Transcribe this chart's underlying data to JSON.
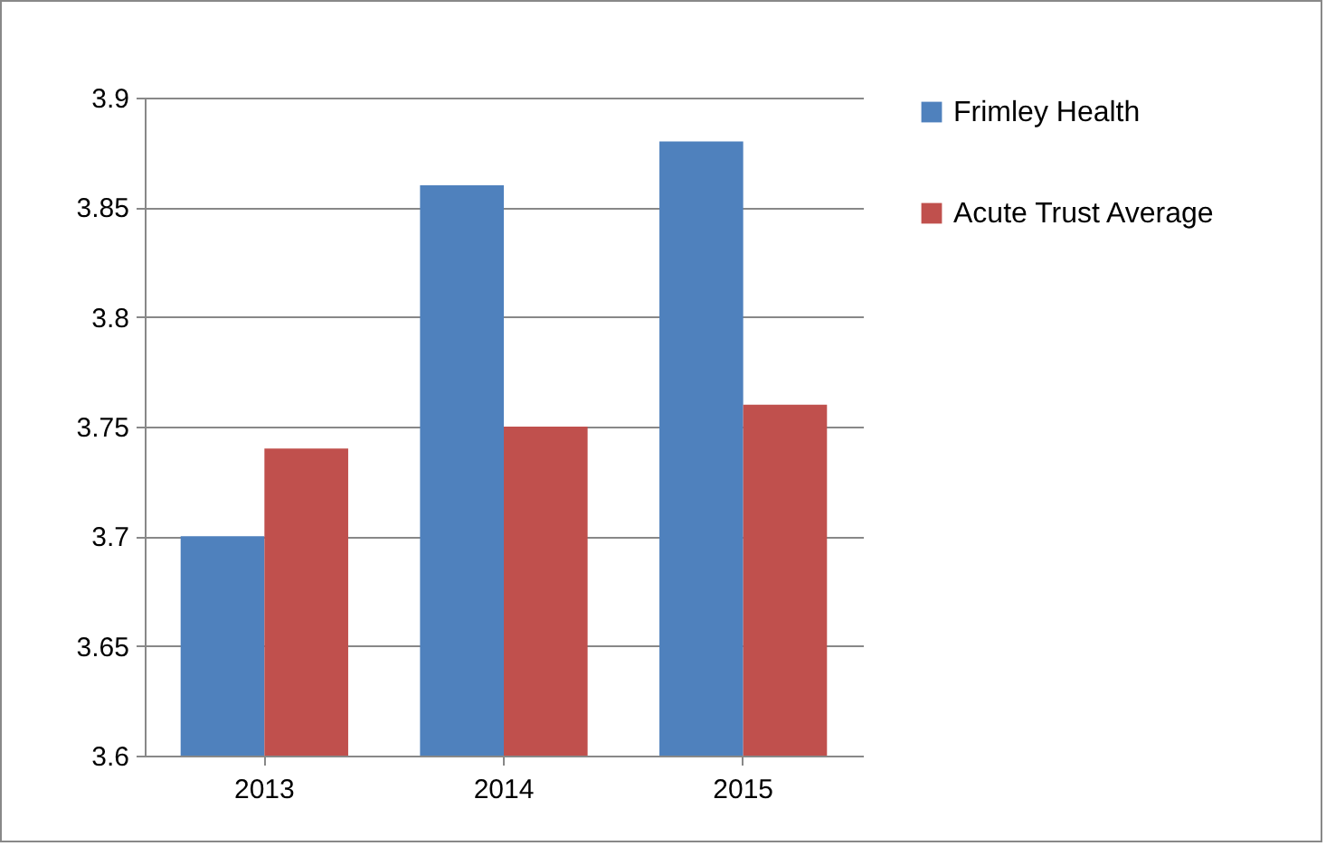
{
  "chart_data": {
    "type": "bar",
    "categories": [
      "2013",
      "2014",
      "2015"
    ],
    "series": [
      {
        "name": "Frimley Health",
        "color": "#4f81bd",
        "values": [
          3.7,
          3.86,
          3.88
        ]
      },
      {
        "name": "Acute Trust Average",
        "color": "#c0504d",
        "values": [
          3.74,
          3.75,
          3.76
        ]
      }
    ],
    "ylim": [
      3.6,
      3.9
    ],
    "yticks": [
      3.6,
      3.65,
      3.7,
      3.75,
      3.8,
      3.85,
      3.9
    ],
    "grid": "y",
    "legend": "right"
  }
}
